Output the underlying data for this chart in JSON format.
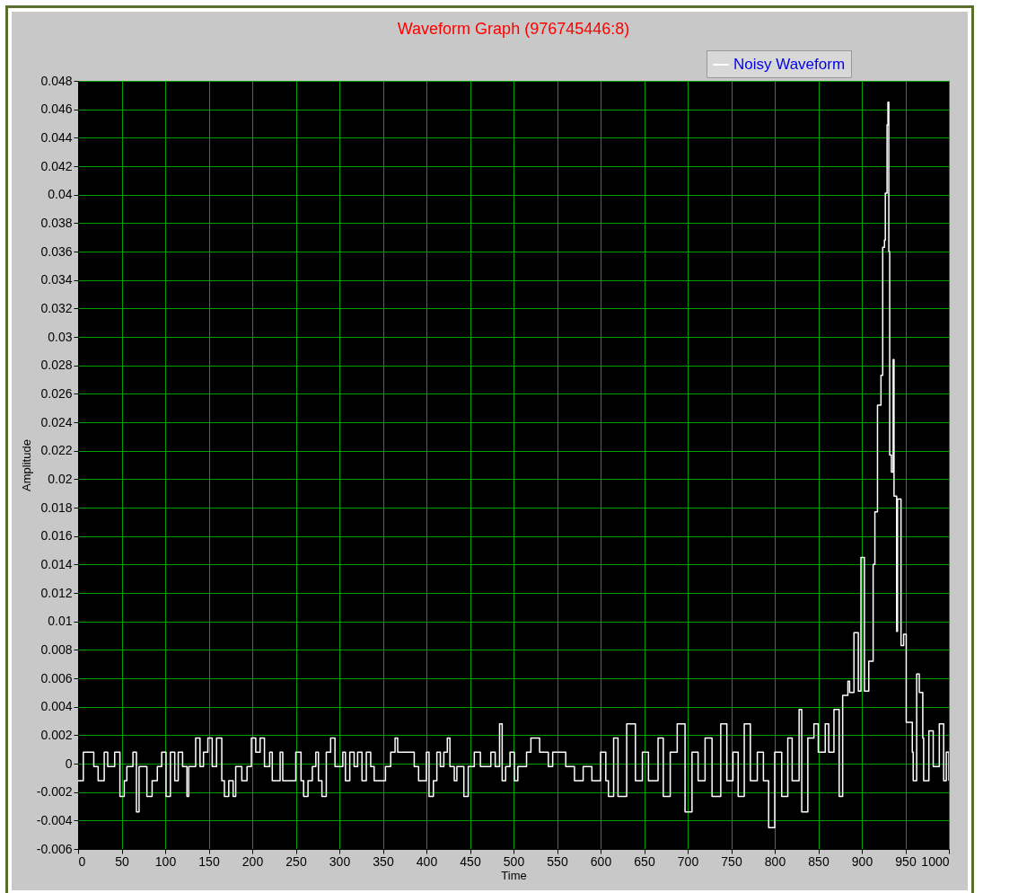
{
  "chart_data": {
    "type": "step",
    "title": "Waveform Graph (976745446:8)",
    "xlabel": "Time",
    "ylabel": "Amplitude",
    "legend": "top right",
    "grid": true,
    "xlim": [
      0,
      1000
    ],
    "xticks": [
      0,
      50,
      100,
      150,
      200,
      250,
      300,
      350,
      400,
      450,
      500,
      550,
      600,
      650,
      700,
      750,
      800,
      850,
      900,
      950,
      1000
    ],
    "ylim": [
      -0.006,
      0.048
    ],
    "yticks": [
      -0.006,
      -0.004,
      -0.002,
      0,
      0.002,
      0.004,
      0.006,
      0.008,
      0.01,
      0.012,
      0.014,
      0.016,
      0.018,
      0.02,
      0.022,
      0.024,
      0.026,
      0.028,
      0.03,
      0.032,
      0.034,
      0.036,
      0.038,
      0.04,
      0.042,
      0.044,
      0.046,
      0.048
    ],
    "series": [
      {
        "name": "Noisy Waveform",
        "color": "#ffffff",
        "x": [
          0,
          6,
          18,
          23,
          30,
          34,
          42,
          48,
          53,
          56,
          63,
          67,
          70,
          79,
          85,
          91,
          96,
          101,
          106,
          111,
          115,
          120,
          125,
          127,
          135,
          140,
          144,
          149,
          154,
          159,
          165,
          168,
          173,
          178,
          181,
          188,
          194,
          199,
          204,
          209,
          214,
          220,
          223,
          232,
          235,
          250,
          256,
          259,
          264,
          269,
          273,
          276,
          280,
          285,
          290,
          295,
          304,
          307,
          312,
          317,
          321,
          326,
          331,
          336,
          340,
          353,
          359,
          364,
          367,
          386,
          391,
          400,
          403,
          408,
          412,
          416,
          420,
          424,
          427,
          432,
          435,
          443,
          448,
          455,
          462,
          474,
          479,
          484,
          487,
          491,
          496,
          501,
          505,
          515,
          520,
          530,
          540,
          545,
          560,
          570,
          580,
          590,
          600,
          606,
          609,
          615,
          620,
          630,
          640,
          648,
          655,
          666,
          672,
          680,
          688,
          697,
          705,
          712,
          720,
          728,
          738,
          745,
          752,
          758,
          765,
          772,
          780,
          787,
          793,
          800,
          808,
          815,
          820,
          828,
          831,
          838,
          845,
          850,
          858,
          862,
          868,
          874,
          878,
          884,
          886,
          891,
          896,
          899,
          903,
          908,
          913,
          915,
          918,
          922,
          924,
          926,
          927,
          929,
          930,
          931,
          932,
          934,
          936,
          937,
          940,
          941,
          945,
          948,
          951,
          958,
          959,
          963,
          966,
          970,
          971,
          977,
          982,
          989,
          994,
          997,
          1000
        ],
        "values": [
          -0.0012,
          0.0008,
          -0.0002,
          -0.0012,
          0.0008,
          -0.0002,
          0.0008,
          -0.0023,
          -0.0012,
          -0.0002,
          0.0008,
          -0.0034,
          -0.0002,
          -0.0023,
          -0.0012,
          -0.0002,
          0.0008,
          -0.0023,
          0.0008,
          -0.0012,
          0.0008,
          -0.0002,
          -0.0023,
          -0.0002,
          0.0018,
          -0.0002,
          0.0008,
          0.0018,
          -0.0002,
          0.0018,
          -0.0012,
          -0.0023,
          -0.0012,
          -0.0023,
          -0.0002,
          -0.0012,
          -0.0002,
          0.0018,
          0.0008,
          0.0018,
          -0.0002,
          0.0008,
          -0.0012,
          0.0008,
          -0.0012,
          0.0008,
          -0.0012,
          -0.0023,
          -0.0012,
          -0.0002,
          0.0008,
          -0.0012,
          -0.0023,
          0.0008,
          0.0018,
          -0.0002,
          0.0008,
          -0.0012,
          0.0008,
          -0.0002,
          0.0008,
          -0.0012,
          0.0008,
          -0.0002,
          -0.0012,
          -0.0002,
          0.0008,
          0.0018,
          0.0008,
          -0.0002,
          -0.0012,
          0.0008,
          -0.0023,
          -0.0012,
          0.0008,
          -0.0002,
          0.0008,
          0.0018,
          -0.0002,
          -0.0012,
          -0.0002,
          -0.0023,
          -0.0002,
          0.0008,
          -0.0002,
          0.0008,
          -0.0002,
          0.0028,
          -0.0012,
          -0.0002,
          0.0008,
          -0.0012,
          -0.0002,
          0.0008,
          0.0018,
          0.0008,
          -0.0002,
          0.0008,
          -0.0002,
          -0.0012,
          -0.0002,
          -0.0012,
          0.0008,
          -0.0012,
          -0.0023,
          0.0018,
          -0.0023,
          0.0028,
          -0.0012,
          0.0008,
          -0.0012,
          0.0018,
          -0.0023,
          0.0008,
          0.0028,
          -0.0034,
          0.0008,
          -0.0012,
          0.0018,
          -0.0023,
          0.0028,
          -0.0012,
          0.0008,
          -0.0023,
          0.0028,
          -0.0012,
          0.0008,
          -0.0012,
          -0.0045,
          0.0008,
          -0.0023,
          0.0018,
          -0.0012,
          0.0038,
          -0.0034,
          0.0018,
          0.0028,
          0.0008,
          0.0028,
          0.0008,
          0.0038,
          -0.0023,
          0.0048,
          0.0058,
          0.005,
          0.0092,
          0.0051,
          0.0145,
          0.0051,
          0.0072,
          0.014,
          0.0177,
          0.0252,
          0.0273,
          0.0363,
          0.0368,
          0.0401,
          0.0449,
          0.0465,
          0.036,
          0.0217,
          0.0205,
          0.0284,
          0.0188,
          0.0093,
          0.0186,
          0.0083,
          0.0091,
          0.0029,
          0.0008,
          -0.0012,
          0.0063,
          0.005,
          0.0018,
          -0.0012,
          0.0023,
          -0.0002,
          0.0028,
          -0.0012,
          0.0008,
          -0.0012
        ]
      }
    ]
  }
}
